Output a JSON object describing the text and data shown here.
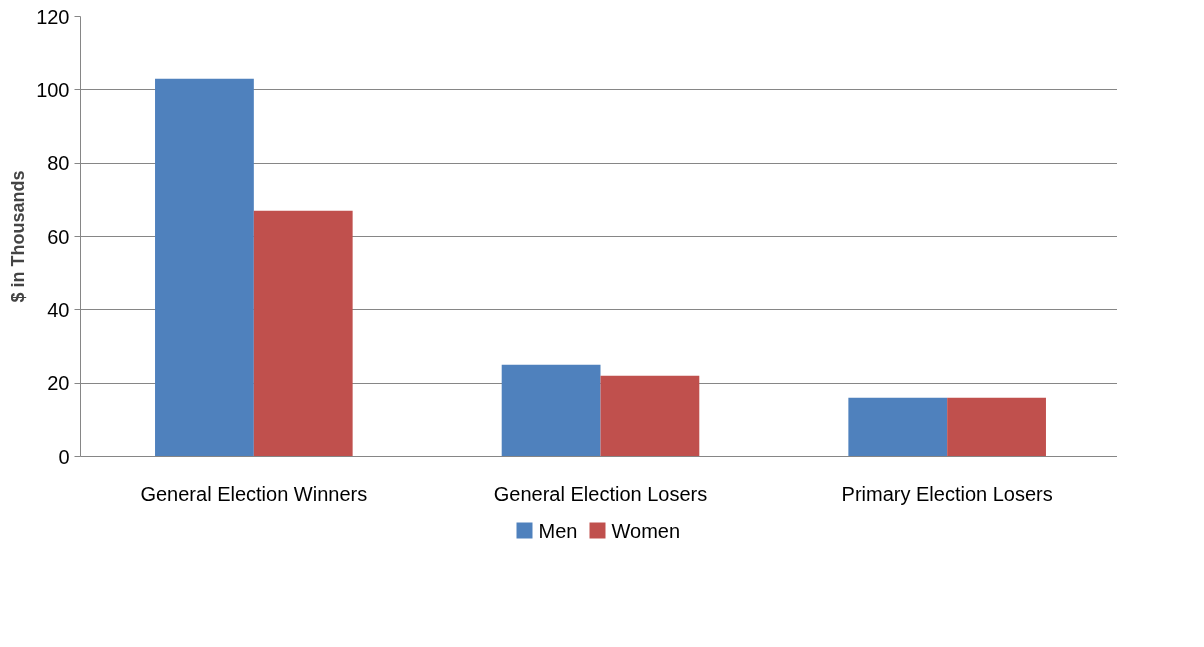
{
  "chart_data": {
    "type": "bar",
    "ylabel": "$ in Thousands",
    "categories": [
      "General Election Winners",
      "General Election Losers",
      "Primary Election Losers"
    ],
    "series": [
      {
        "name": "Men",
        "color": "#4f81bd",
        "values": [
          103,
          25,
          16
        ]
      },
      {
        "name": "Women",
        "color": "#c0504d",
        "values": [
          67,
          22,
          16
        ]
      }
    ],
    "ylim": [
      0,
      120
    ],
    "yticks": [
      0,
      20,
      40,
      60,
      80,
      100,
      120
    ],
    "grid": "y",
    "legend": "bottom"
  }
}
